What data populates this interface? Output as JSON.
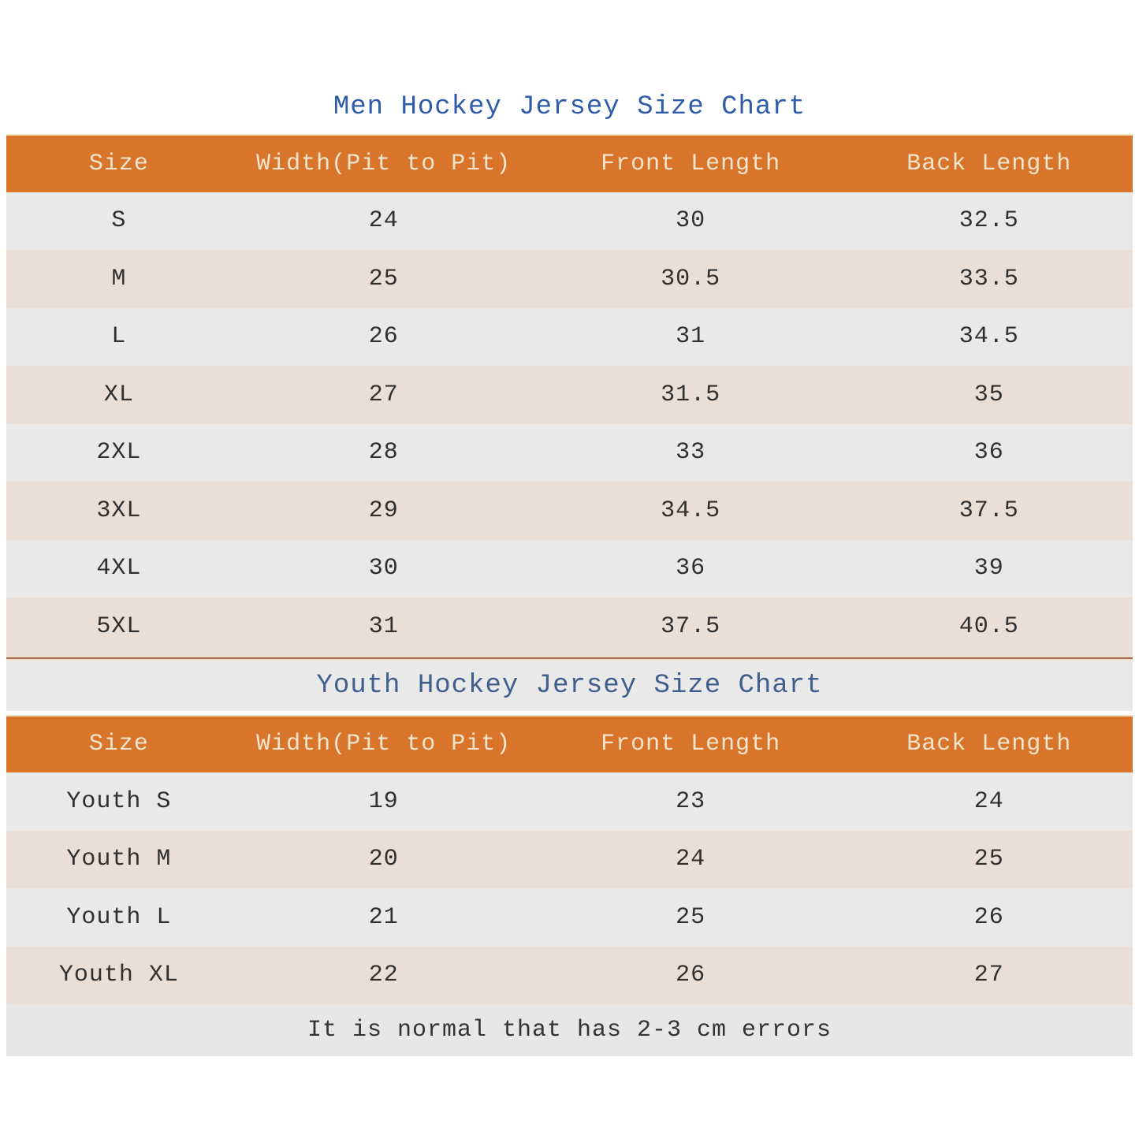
{
  "chart_data": [
    {
      "type": "table",
      "title": "Men Hockey Jersey Size Chart",
      "columns": [
        "Size",
        "Width(Pit to Pit)",
        "Front Length",
        "Back Length"
      ],
      "rows": [
        [
          "S",
          "24",
          "30",
          "32.5"
        ],
        [
          "M",
          "25",
          "30.5",
          "33.5"
        ],
        [
          "L",
          "26",
          "31",
          "34.5"
        ],
        [
          "XL",
          "27",
          "31.5",
          "35"
        ],
        [
          "2XL",
          "28",
          "33",
          "36"
        ],
        [
          "3XL",
          "29",
          "34.5",
          "37.5"
        ],
        [
          "4XL",
          "30",
          "36",
          "39"
        ],
        [
          "5XL",
          "31",
          "37.5",
          "40.5"
        ]
      ]
    },
    {
      "type": "table",
      "title": "Youth Hockey Jersey Size Chart",
      "columns": [
        "Size",
        "Width(Pit to Pit)",
        "Front Length",
        "Back Length"
      ],
      "rows": [
        [
          "Youth S",
          "19",
          "23",
          "24"
        ],
        [
          "Youth M",
          "20",
          "24",
          "25"
        ],
        [
          "Youth L",
          "21",
          "25",
          "26"
        ],
        [
          "Youth XL",
          "22",
          "26",
          "27"
        ]
      ]
    }
  ],
  "footer": {
    "note": "It is normal that has 2-3 cm errors"
  },
  "colors": {
    "header_bg": "#d9752b",
    "header_text": "#f3e5cd",
    "row_gray": "#e9e9e9",
    "row_pink": "#eadfd7",
    "men_title": "#2e5ca9",
    "youth_title": "#3f5e8c",
    "divider_line": "#9e6a60",
    "divider_cream": "#efe0c4",
    "footer_bg": "#e7e7e7",
    "cell_text": "#2f2f2f"
  }
}
